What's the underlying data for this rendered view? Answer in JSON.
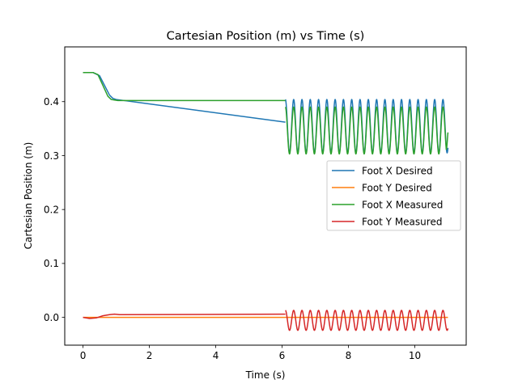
{
  "chart_data": {
    "type": "line",
    "title": "Cartesian Position (m) vs Time (s)",
    "xlabel": "Time (s)",
    "ylabel": "Cartesian Position (m)",
    "xlim": [
      -0.55,
      11.55
    ],
    "ylim": [
      -0.0515,
      0.5015
    ],
    "xticks": [
      0,
      2,
      4,
      6,
      8,
      10
    ],
    "yticks": [
      0.0,
      0.1,
      0.2,
      0.3,
      0.4
    ],
    "grid": false,
    "legend": "center-right",
    "series": [
      {
        "name": "Foot X Desired",
        "color": "#1f77b4",
        "segments": [
          {
            "x": [
              0,
              0.3,
              0.5,
              0.65,
              0.8,
              0.9,
              1.0
            ],
            "y": [
              0.454,
              0.454,
              0.448,
              0.43,
              0.412,
              0.406,
              0.404
            ]
          },
          {
            "x": [
              1.0,
              6.1
            ],
            "y": [
              0.404,
              0.362
            ]
          }
        ],
        "oscillation": {
          "start": 6.1,
          "end": 11.0,
          "period": 0.25,
          "min": 0.305,
          "max": 0.404
        }
      },
      {
        "name": "Foot Y Desired",
        "color": "#ff7f0e",
        "segments": [
          {
            "x": [
              0,
              11.0
            ],
            "y": [
              0.0,
              0.0
            ]
          }
        ]
      },
      {
        "name": "Foot X Measured",
        "color": "#2ca02c",
        "segments": [
          {
            "x": [
              0,
              0.3,
              0.45,
              0.6,
              0.75,
              0.85,
              0.95,
              1.05,
              6.1
            ],
            "y": [
              0.454,
              0.454,
              0.45,
              0.43,
              0.41,
              0.404,
              0.403,
              0.402,
              0.402
            ]
          }
        ],
        "oscillation": {
          "start": 6.1,
          "end": 11.0,
          "period": 0.25,
          "min": 0.303,
          "max": 0.39,
          "end_value": 0.343
        }
      },
      {
        "name": "Foot Y Measured",
        "color": "#d62728",
        "segments": [
          {
            "x": [
              0,
              0.2,
              0.4,
              0.6,
              0.8,
              0.95,
              1.1,
              6.1
            ],
            "y": [
              0.0,
              -0.002,
              -0.001,
              0.003,
              0.005,
              0.006,
              0.005,
              0.006
            ]
          }
        ],
        "oscillation": {
          "start": 6.1,
          "end": 11.0,
          "period": 0.25,
          "min": -0.024,
          "max": 0.013
        }
      }
    ]
  }
}
